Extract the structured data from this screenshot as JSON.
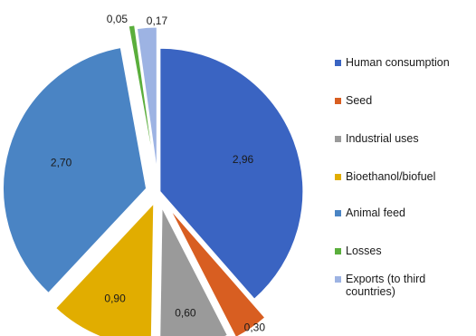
{
  "chart_data": {
    "type": "pie",
    "exploded": true,
    "start_angle_deg": 0,
    "direction": "clockwise",
    "slices": [
      {
        "label": "Human consumption",
        "value": 2.96,
        "value_label": "2,96",
        "color": "#3a64c2"
      },
      {
        "label": "Seed",
        "value": 0.3,
        "value_label": "0,30",
        "color": "#d85e21"
      },
      {
        "label": "Industrial uses",
        "value": 0.6,
        "value_label": "0,60",
        "color": "#9a9a9a"
      },
      {
        "label": "Bioethanol/biofuel",
        "value": 0.9,
        "value_label": "0,90",
        "color": "#e1ad00"
      },
      {
        "label": "Animal feed",
        "value": 2.7,
        "value_label": "2,70",
        "color": "#4a84c4"
      },
      {
        "label": "Losses",
        "value": 0.05,
        "value_label": "0,05",
        "color": "#5aae3c"
      },
      {
        "label": "Exports (to third countries)",
        "value": 0.17,
        "value_label": "0,17",
        "color": "#9db3e3"
      }
    ],
    "legend_position": "right"
  }
}
